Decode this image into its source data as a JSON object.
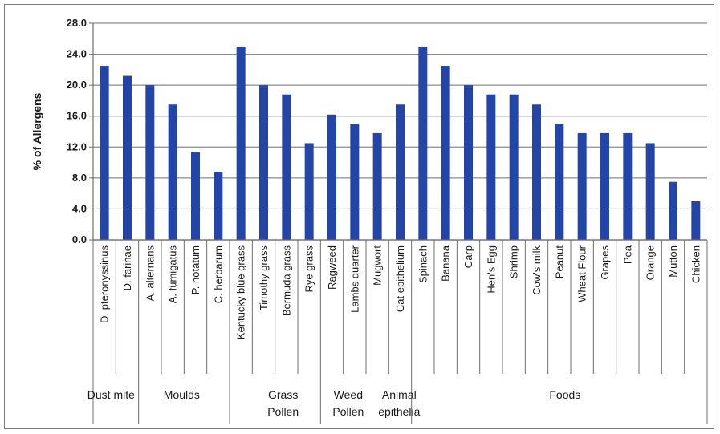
{
  "chart_data": {
    "type": "bar",
    "title": "",
    "xlabel": "",
    "ylabel": "% of Allergens",
    "ylim": [
      0,
      28
    ],
    "yticks": [
      "0.0",
      "4.0",
      "8.0",
      "12.0",
      "16.0",
      "20.0",
      "24.0",
      "28.0"
    ],
    "grid": true,
    "legend": "none",
    "bar_color": "#2445a8",
    "categories": [
      "D. pteronyssinus",
      "D. farinae",
      "A. alternans",
      "A. fumigatus",
      "P. notatum",
      "C. herbarum",
      "Kentucky blue grass",
      "Timothy grass",
      "Bermuda grass",
      "Rye grass",
      "Ragweed",
      "Lambs quarter",
      "Mugwort",
      "Cat epithelium",
      "Spinach",
      "Banana",
      "Carp",
      "Hen's Egg",
      "Shrimp",
      "Cow's milk",
      "Peanut",
      "Wheat Flour",
      "Grapes",
      "Pea",
      "Orange",
      "Mutton",
      "Chicken"
    ],
    "values": [
      22.5,
      21.2,
      20.0,
      17.5,
      11.3,
      8.8,
      25.0,
      20.0,
      18.8,
      12.5,
      16.2,
      15.0,
      13.8,
      17.5,
      25.0,
      22.5,
      20.0,
      18.8,
      18.8,
      17.5,
      15.0,
      13.8,
      13.8,
      13.8,
      12.5,
      7.5,
      5.0
    ],
    "groups": [
      {
        "lines": [
          "Dust mite"
        ],
        "count": 2
      },
      {
        "lines": [
          "Moulds"
        ],
        "count": 4
      },
      {
        "lines": [
          "Grass",
          "Pollen"
        ],
        "count": 4
      },
      {
        "lines": [
          "Weed",
          "Pollen"
        ],
        "count": 3
      },
      {
        "lines": [
          "Animal",
          "epithelia"
        ],
        "count": 1
      },
      {
        "lines": [
          "Foods"
        ],
        "count": 13
      }
    ]
  }
}
